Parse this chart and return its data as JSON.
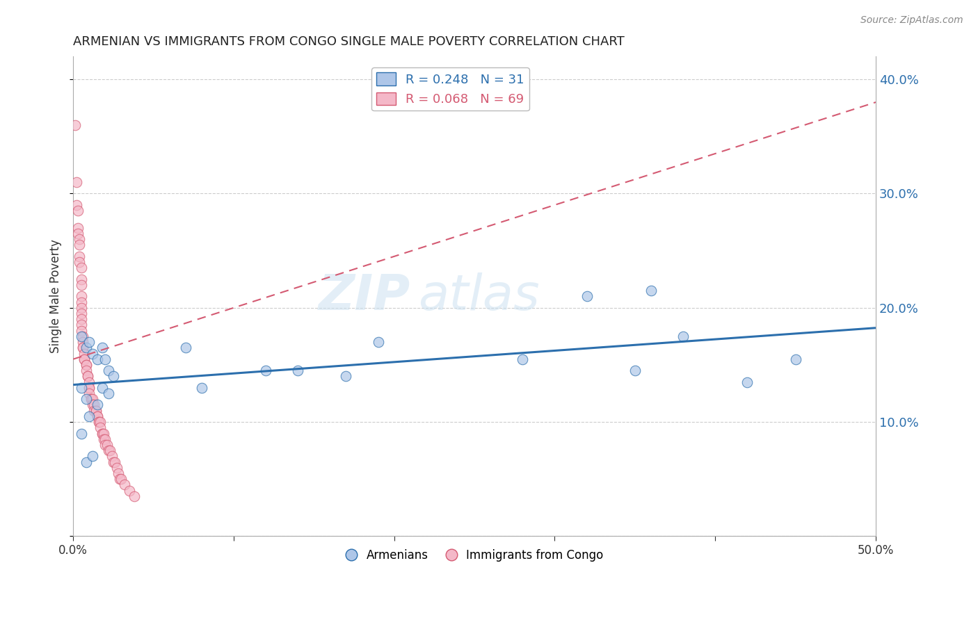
{
  "title": "ARMENIAN VS IMMIGRANTS FROM CONGO SINGLE MALE POVERTY CORRELATION CHART",
  "source": "Source: ZipAtlas.com",
  "ylabel": "Single Male Poverty",
  "xlim": [
    0.0,
    0.5
  ],
  "ylim": [
    0.0,
    0.42
  ],
  "legend_blue_R": "0.248",
  "legend_blue_N": "31",
  "legend_pink_R": "0.068",
  "legend_pink_N": "69",
  "blue_color": "#aec6e8",
  "blue_line_color": "#2c6fad",
  "pink_color": "#f4b8c8",
  "pink_line_color": "#d45a72",
  "watermark_top": "ZIP",
  "watermark_bot": "atlas",
  "armenian_x": [
    0.005,
    0.008,
    0.01,
    0.012,
    0.015,
    0.018,
    0.02,
    0.022,
    0.025,
    0.005,
    0.008,
    0.01,
    0.015,
    0.018,
    0.022,
    0.005,
    0.008,
    0.012,
    0.07,
    0.08,
    0.12,
    0.14,
    0.17,
    0.19,
    0.28,
    0.32,
    0.35,
    0.36,
    0.38,
    0.42,
    0.45
  ],
  "armenian_y": [
    0.175,
    0.165,
    0.17,
    0.16,
    0.155,
    0.165,
    0.155,
    0.145,
    0.14,
    0.13,
    0.12,
    0.105,
    0.115,
    0.13,
    0.125,
    0.09,
    0.065,
    0.07,
    0.165,
    0.13,
    0.145,
    0.145,
    0.14,
    0.17,
    0.155,
    0.21,
    0.145,
    0.215,
    0.175,
    0.135,
    0.155
  ],
  "congo_x": [
    0.001,
    0.002,
    0.002,
    0.003,
    0.003,
    0.003,
    0.004,
    0.004,
    0.004,
    0.004,
    0.005,
    0.005,
    0.005,
    0.005,
    0.005,
    0.005,
    0.005,
    0.005,
    0.005,
    0.005,
    0.006,
    0.006,
    0.006,
    0.006,
    0.007,
    0.007,
    0.007,
    0.008,
    0.008,
    0.008,
    0.009,
    0.009,
    0.01,
    0.01,
    0.01,
    0.01,
    0.011,
    0.011,
    0.012,
    0.012,
    0.013,
    0.013,
    0.014,
    0.014,
    0.015,
    0.015,
    0.016,
    0.016,
    0.017,
    0.017,
    0.018,
    0.018,
    0.019,
    0.019,
    0.02,
    0.02,
    0.021,
    0.022,
    0.023,
    0.024,
    0.025,
    0.026,
    0.027,
    0.028,
    0.029,
    0.03,
    0.032,
    0.035,
    0.038
  ],
  "congo_y": [
    0.36,
    0.31,
    0.29,
    0.285,
    0.27,
    0.265,
    0.26,
    0.255,
    0.245,
    0.24,
    0.235,
    0.225,
    0.22,
    0.21,
    0.205,
    0.2,
    0.195,
    0.19,
    0.185,
    0.18,
    0.175,
    0.17,
    0.165,
    0.165,
    0.16,
    0.155,
    0.155,
    0.15,
    0.15,
    0.145,
    0.14,
    0.14,
    0.135,
    0.13,
    0.13,
    0.125,
    0.12,
    0.12,
    0.12,
    0.115,
    0.115,
    0.11,
    0.11,
    0.11,
    0.105,
    0.105,
    0.1,
    0.1,
    0.1,
    0.095,
    0.09,
    0.09,
    0.09,
    0.085,
    0.085,
    0.08,
    0.08,
    0.075,
    0.075,
    0.07,
    0.065,
    0.065,
    0.06,
    0.055,
    0.05,
    0.05,
    0.045,
    0.04,
    0.035
  ],
  "pink_trendline_x": [
    0.0,
    0.5
  ],
  "pink_trendline_y": [
    0.155,
    0.38
  ]
}
